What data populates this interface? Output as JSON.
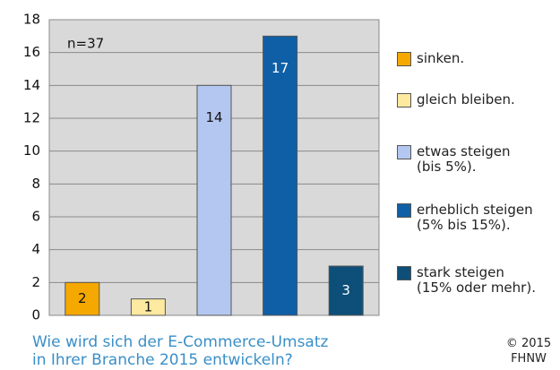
{
  "chart_data": {
    "type": "bar",
    "annotation": "n=37",
    "categories": [
      "sinken.",
      "gleich bleiben.",
      "etwas steigen\n(bis 5%).",
      "erheblich steigen\n(5% bis 15%).",
      "stark steigen\n(15% oder mehr)."
    ],
    "values": [
      2,
      1,
      14,
      17,
      3
    ],
    "colors": [
      "#f5a800",
      "#fde9a0",
      "#b4c7f0",
      "#0f5fa6",
      "#0d4f78"
    ],
    "ylim": [
      0,
      18
    ],
    "yticks": [
      0,
      2,
      4,
      6,
      8,
      10,
      12,
      14,
      16,
      18
    ],
    "grid": true,
    "legend": "right",
    "caption": "Wie wird sich der E-Commerce-Umsatz\nin Ihrer Branche 2015 entwickeln?",
    "credit": "© 2015\nFHNW"
  }
}
